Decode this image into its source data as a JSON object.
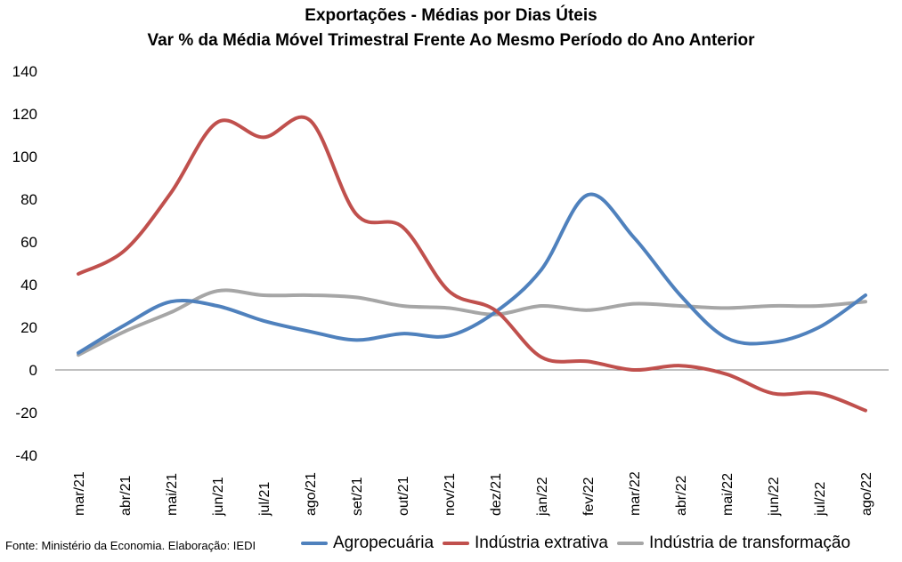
{
  "title": "Exportações - Médias por Dias Úteis",
  "subtitle": "Var % da Média Móvel Trimestral Frente Ao Mesmo Período do Ano Anterior",
  "source": "Fonte: Ministério da Economia. Elaboração: IEDI",
  "colors": {
    "Agropecuária": "#4f81bd",
    "Indústria extrativa": "#c0504d",
    "Indústria de transformação": "#a6a6a6"
  },
  "chart_data": {
    "type": "line",
    "title": "Exportações - Médias por Dias Úteis",
    "subtitle": "Var % da Média Móvel Trimestral Frente Ao Mesmo Período do Ano Anterior",
    "xlabel": "",
    "ylabel": "",
    "ylim": [
      -40,
      140
    ],
    "yticks": [
      -40,
      -20,
      0,
      20,
      40,
      60,
      80,
      100,
      120,
      140
    ],
    "grid": false,
    "legend": "bottom",
    "categories": [
      "mar/21",
      "abr/21",
      "mai/21",
      "jun/21",
      "jul/21",
      "ago/21",
      "set/21",
      "out/21",
      "nov/21",
      "dez/21",
      "jan/22",
      "fev/22",
      "mar/22",
      "abr/22",
      "mai/22",
      "jun/22",
      "jul/22",
      "ago/22"
    ],
    "series": [
      {
        "name": "Agropecuária",
        "values": [
          8,
          21,
          32,
          30,
          23,
          18,
          14,
          17,
          16,
          27,
          47,
          82,
          62,
          35,
          15,
          13,
          20,
          35
        ]
      },
      {
        "name": "Indústria extrativa",
        "values": [
          45,
          56,
          83,
          116,
          109,
          117,
          73,
          67,
          37,
          28,
          6,
          4,
          0,
          2,
          -2,
          -11,
          -11,
          -19
        ]
      },
      {
        "name": "Indústria de transformação",
        "values": [
          7,
          18,
          27,
          37,
          35,
          35,
          34,
          30,
          29,
          26,
          30,
          28,
          31,
          30,
          29,
          30,
          30,
          32
        ]
      }
    ]
  }
}
